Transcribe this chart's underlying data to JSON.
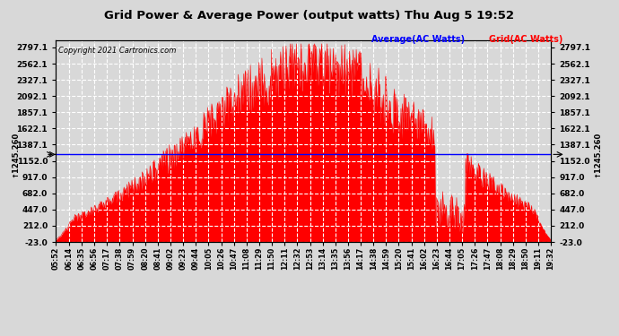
{
  "title": "Grid Power & Average Power (output watts) Thu Aug 5 19:52",
  "copyright": "Copyright 2021 Cartronics.com",
  "legend_avg": "Average(AC Watts)",
  "legend_grid": "Grid(AC Watts)",
  "avg_value": 1245.26,
  "y_ticks": [
    -23.0,
    212.0,
    447.0,
    682.0,
    917.0,
    1152.0,
    1387.1,
    1622.1,
    1857.1,
    2092.1,
    2327.1,
    2562.1,
    2797.1
  ],
  "ylim": [
    -23.0,
    2900.0
  ],
  "background_color": "#d8d8d8",
  "plot_bg_color": "#d8d8d8",
  "fill_color": "#ff0000",
  "line_color": "#ff0000",
  "avg_line_color": "#0000ff",
  "grid_color": "#ffffff",
  "title_color": "#000000",
  "x_tick_labels": [
    "05:52",
    "06:14",
    "06:35",
    "06:56",
    "07:17",
    "07:38",
    "07:59",
    "08:20",
    "08:41",
    "09:02",
    "09:23",
    "09:44",
    "10:05",
    "10:26",
    "10:47",
    "11:08",
    "11:29",
    "11:50",
    "12:11",
    "12:32",
    "12:53",
    "13:14",
    "13:35",
    "13:56",
    "14:17",
    "14:38",
    "14:59",
    "15:20",
    "15:41",
    "16:02",
    "16:23",
    "16:44",
    "17:05",
    "17:26",
    "17:47",
    "18:08",
    "18:29",
    "18:50",
    "19:11",
    "19:32"
  ]
}
